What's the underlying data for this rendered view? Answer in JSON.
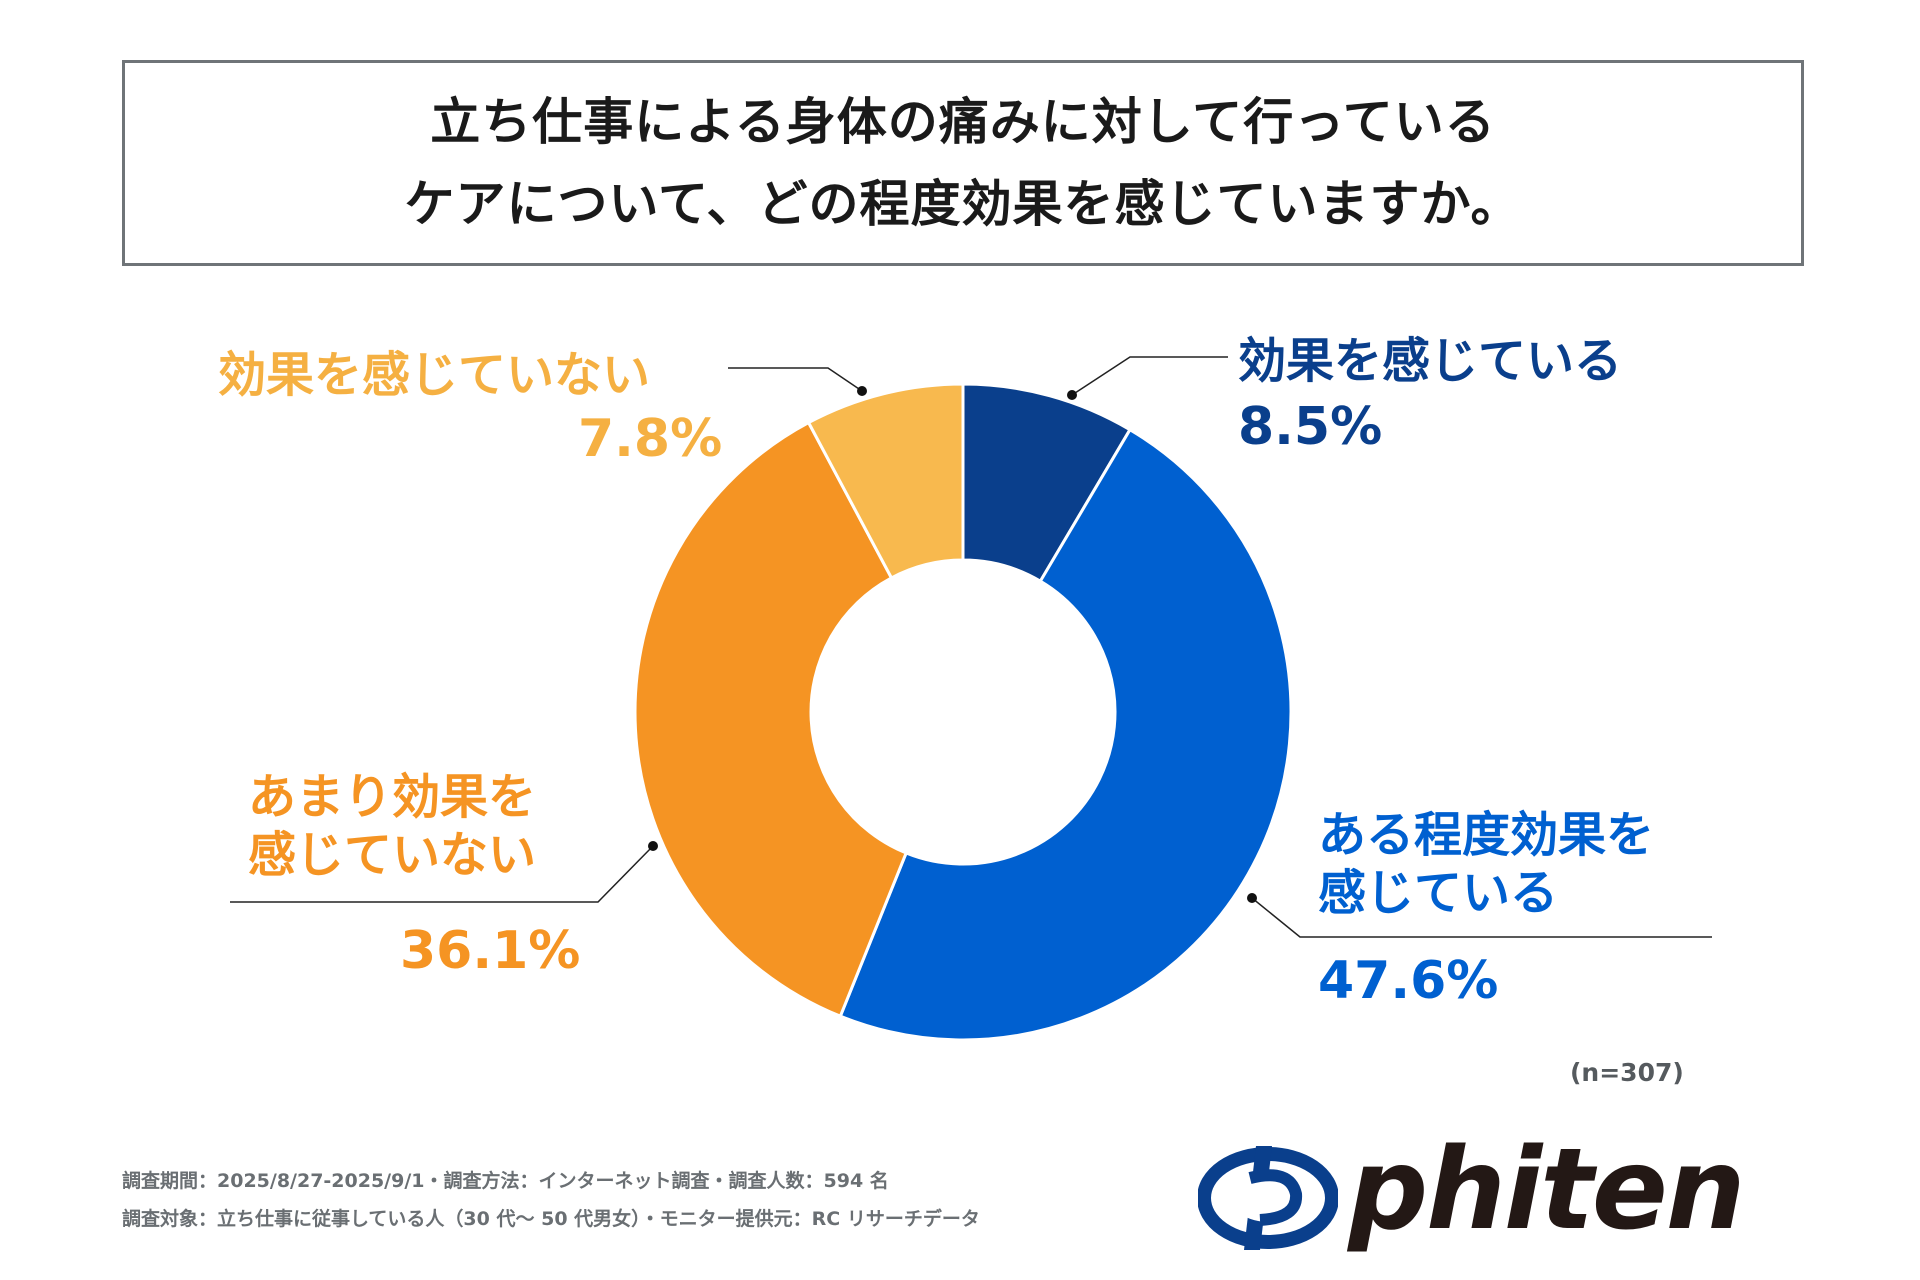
{
  "title": {
    "line1": "立ち仕事による身体の痛みに対して行っている",
    "line2": "ケアについて、どの程度効果を感じていますか。"
  },
  "chart_data": {
    "type": "pie",
    "donut": true,
    "slices": [
      {
        "label_line1": "効果を感じている",
        "label_line2": "",
        "value": 8.5,
        "value_label": "8.5%",
        "color": "#0a3f8c",
        "label_color": "#0a3f8c"
      },
      {
        "label_line1": "ある程度効果を",
        "label_line2": "感じている",
        "value": 47.6,
        "value_label": "47.6%",
        "color": "#0060d0",
        "label_color": "#0060d0"
      },
      {
        "label_line1": "あまり効果を",
        "label_line2": "感じていない",
        "value": 36.1,
        "value_label": "36.1%",
        "color": "#f59423",
        "label_color": "#f59423"
      },
      {
        "label_line1": "効果を感じていない",
        "label_line2": "",
        "value": 7.8,
        "value_label": "7.8%",
        "color": "#f8b94e",
        "label_color": "#f5b042"
      }
    ],
    "sample_size": "(n=307)"
  },
  "footer": {
    "line1": "調査期間：2025/8/27-2025/9/1・調査方法：インターネット調査・調査人数：594 名",
    "line2": "調査対象：立ち仕事に従事している人（30 代〜 50 代男女）・モニター提供元：RC リサーチデータ"
  },
  "logo": {
    "text": "phiten",
    "colors": {
      "mark": "#0a3f8c",
      "text": "#231815"
    }
  }
}
